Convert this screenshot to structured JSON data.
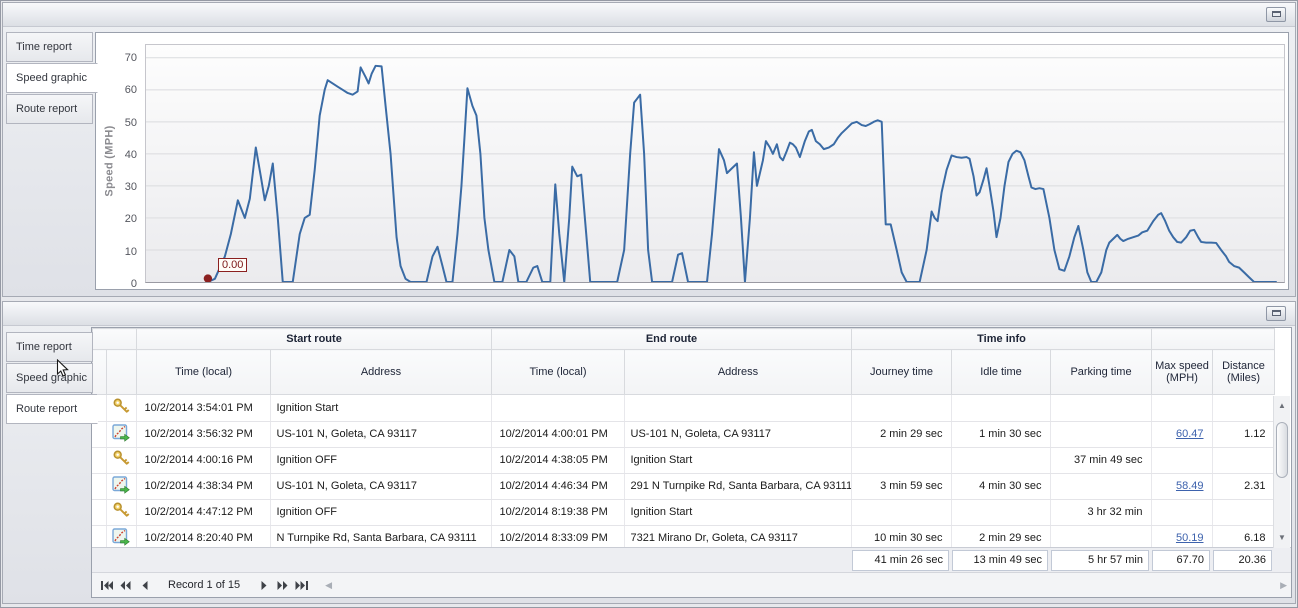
{
  "top_panel": {
    "tabs": [
      {
        "label": "Time report",
        "active": false
      },
      {
        "label": "Speed graphic",
        "active": true
      },
      {
        "label": "Route report",
        "active": false
      }
    ]
  },
  "chart_data": {
    "type": "line",
    "title": "",
    "xlabel": "",
    "ylabel": "Speed (MPH)",
    "ylim": [
      0,
      74
    ],
    "yticks": [
      0,
      10,
      20,
      30,
      40,
      50,
      60,
      70
    ],
    "grid": true,
    "line_color": "#3a6ba5",
    "x_axis_note": "time of trip, axis unlabeled in UI; x = plot pixel offset",
    "start_marker": {
      "value_label": "0.00",
      "color": "#8b2020"
    },
    "points": [
      [
        62,
        0
      ],
      [
        69,
        1
      ],
      [
        79,
        8
      ],
      [
        85,
        15
      ],
      [
        92,
        25.5
      ],
      [
        99,
        20
      ],
      [
        104,
        26
      ],
      [
        110,
        42
      ],
      [
        115,
        33
      ],
      [
        119,
        25.5
      ],
      [
        123,
        30
      ],
      [
        127,
        37
      ],
      [
        132,
        20
      ],
      [
        137,
        0
      ],
      [
        147,
        0
      ],
      [
        154,
        15
      ],
      [
        159,
        20
      ],
      [
        164,
        21
      ],
      [
        169,
        35
      ],
      [
        174,
        52
      ],
      [
        179,
        60
      ],
      [
        182,
        63
      ],
      [
        187,
        62
      ],
      [
        192,
        61
      ],
      [
        197,
        60
      ],
      [
        202,
        59
      ],
      [
        207,
        58.5
      ],
      [
        212,
        59.5
      ],
      [
        215,
        67
      ],
      [
        220,
        64
      ],
      [
        223,
        62
      ],
      [
        226,
        65
      ],
      [
        230,
        67.5
      ],
      [
        236,
        67.3
      ],
      [
        240,
        55
      ],
      [
        245,
        40
      ],
      [
        251,
        14
      ],
      [
        255,
        5
      ],
      [
        260,
        1
      ],
      [
        265,
        0
      ],
      [
        281,
        0
      ],
      [
        287,
        8
      ],
      [
        292,
        11
      ],
      [
        297,
        5
      ],
      [
        301,
        0
      ],
      [
        307,
        0
      ],
      [
        312,
        15
      ],
      [
        316,
        30
      ],
      [
        319,
        45
      ],
      [
        322,
        60.5
      ],
      [
        327,
        55
      ],
      [
        331,
        52
      ],
      [
        335,
        40
      ],
      [
        339,
        20
      ],
      [
        343,
        10
      ],
      [
        349,
        0
      ],
      [
        357,
        0
      ],
      [
        364,
        10
      ],
      [
        369,
        8
      ],
      [
        373,
        0
      ],
      [
        381,
        0
      ],
      [
        388,
        4.5
      ],
      [
        392,
        5
      ],
      [
        397,
        0
      ],
      [
        405,
        0
      ],
      [
        410,
        30.5
      ],
      [
        414,
        15
      ],
      [
        419,
        0
      ],
      [
        424,
        20
      ],
      [
        427,
        36
      ],
      [
        432,
        33
      ],
      [
        436,
        33.5
      ],
      [
        441,
        15
      ],
      [
        445,
        0
      ],
      [
        457,
        0
      ],
      [
        472,
        0
      ],
      [
        479,
        10
      ],
      [
        485,
        40
      ],
      [
        489,
        56
      ],
      [
        495,
        58.5
      ],
      [
        499,
        40
      ],
      [
        503,
        10
      ],
      [
        507,
        0
      ],
      [
        517,
        0
      ],
      [
        527,
        0
      ],
      [
        533,
        8.5
      ],
      [
        537,
        9
      ],
      [
        543,
        0
      ],
      [
        553,
        0
      ],
      [
        562,
        0
      ],
      [
        567,
        15
      ],
      [
        571,
        30
      ],
      [
        574,
        41.5
      ],
      [
        579,
        38
      ],
      [
        582,
        34
      ],
      [
        587,
        35.5
      ],
      [
        592,
        37
      ],
      [
        596,
        20
      ],
      [
        600,
        0
      ],
      [
        605,
        20
      ],
      [
        609,
        40.5
      ],
      [
        612,
        30
      ],
      [
        615,
        34
      ],
      [
        618,
        38
      ],
      [
        621,
        44
      ],
      [
        625,
        42
      ],
      [
        628,
        40
      ],
      [
        632,
        43
      ],
      [
        635,
        39
      ],
      [
        638,
        38
      ],
      [
        642,
        41
      ],
      [
        645,
        43.5
      ],
      [
        648,
        43
      ],
      [
        651,
        42
      ],
      [
        655,
        39
      ],
      [
        660,
        44
      ],
      [
        664,
        47
      ],
      [
        667,
        47.5
      ],
      [
        671,
        44
      ],
      [
        675,
        43
      ],
      [
        679,
        41.5
      ],
      [
        684,
        42
      ],
      [
        689,
        43
      ],
      [
        693,
        45
      ],
      [
        697,
        46.5
      ],
      [
        702,
        48
      ],
      [
        707,
        49.5
      ],
      [
        712,
        50
      ],
      [
        717,
        49
      ],
      [
        721,
        48.7
      ],
      [
        725,
        49.3
      ],
      [
        729,
        50
      ],
      [
        733,
        50.5
      ],
      [
        737,
        50
      ],
      [
        741,
        18
      ],
      [
        746,
        18
      ],
      [
        752,
        10
      ],
      [
        757,
        3
      ],
      [
        762,
        0
      ],
      [
        775,
        0
      ],
      [
        782,
        10
      ],
      [
        787,
        22
      ],
      [
        790,
        20
      ],
      [
        793,
        19
      ],
      [
        797,
        28
      ],
      [
        802,
        35
      ],
      [
        807,
        39.5
      ],
      [
        812,
        39
      ],
      [
        817,
        38.8
      ],
      [
        822,
        39
      ],
      [
        825,
        38.5
      ],
      [
        829,
        33
      ],
      [
        832,
        27
      ],
      [
        835,
        28
      ],
      [
        839,
        32
      ],
      [
        842,
        35.5
      ],
      [
        845,
        30
      ],
      [
        849,
        22
      ],
      [
        852,
        14
      ],
      [
        856,
        20
      ],
      [
        860,
        30
      ],
      [
        864,
        37.5
      ],
      [
        868,
        40
      ],
      [
        872,
        41
      ],
      [
        876,
        40.5
      ],
      [
        880,
        38
      ],
      [
        884,
        33
      ],
      [
        887,
        29.5
      ],
      [
        891,
        29
      ],
      [
        895,
        29.3
      ],
      [
        899,
        29
      ],
      [
        905,
        20
      ],
      [
        910,
        10
      ],
      [
        915,
        4
      ],
      [
        920,
        3.5
      ],
      [
        925,
        8
      ],
      [
        930,
        14
      ],
      [
        934,
        17.5
      ],
      [
        939,
        10
      ],
      [
        943,
        3
      ],
      [
        947,
        0
      ],
      [
        952,
        0
      ],
      [
        957,
        3
      ],
      [
        962,
        10
      ],
      [
        965,
        12.3
      ],
      [
        969,
        13.5
      ],
      [
        973,
        14.7
      ],
      [
        976,
        13.5
      ],
      [
        979,
        12.8
      ],
      [
        984,
        13.5
      ],
      [
        989,
        14
      ],
      [
        994,
        14.5
      ],
      [
        998,
        15.5
      ],
      [
        1003,
        16
      ],
      [
        1009,
        19
      ],
      [
        1014,
        21
      ],
      [
        1017,
        21.5
      ],
      [
        1021,
        19
      ],
      [
        1025,
        16
      ],
      [
        1029,
        14
      ],
      [
        1033,
        12.5
      ],
      [
        1037,
        12.3
      ],
      [
        1042,
        14
      ],
      [
        1046,
        16
      ],
      [
        1050,
        16.3
      ],
      [
        1054,
        14
      ],
      [
        1057,
        12.5
      ],
      [
        1062,
        12.3
      ],
      [
        1067,
        12.3
      ],
      [
        1072,
        12.2
      ],
      [
        1077,
        10
      ],
      [
        1082,
        8
      ],
      [
        1085,
        6.3
      ],
      [
        1090,
        5
      ],
      [
        1095,
        4.5
      ],
      [
        1100,
        3
      ],
      [
        1105,
        1.5
      ],
      [
        1110,
        0
      ],
      [
        1120,
        0
      ],
      [
        1132,
        0
      ]
    ]
  },
  "bottom_panel": {
    "tabs": [
      {
        "label": "Time report",
        "active": false
      },
      {
        "label": "Speed graphic",
        "active": false
      },
      {
        "label": "Route report",
        "active": true
      }
    ],
    "table": {
      "group_headers": [
        {
          "label": "Start route"
        },
        {
          "label": "End route"
        },
        {
          "label": "Time info"
        },
        {
          "label": ""
        }
      ],
      "columns": [
        "Time (local)",
        "Address",
        "Time (local)",
        "Address",
        "Journey time",
        "Idle time",
        "Parking time",
        "Max speed (MPH)",
        "Distance (Miles)"
      ],
      "rows": [
        {
          "icon": "key",
          "start_time": "10/2/2014 3:54:01 PM",
          "start_address": "Ignition Start",
          "end_time": "",
          "end_address": "",
          "journey_time": "",
          "idle_time": "",
          "parking_time": "",
          "max_speed": "",
          "distance": ""
        },
        {
          "icon": "route",
          "start_time": "10/2/2014 3:56:32 PM",
          "start_address": "US-101 N, Goleta, CA 93117",
          "end_time": "10/2/2014 4:00:01 PM",
          "end_address": "US-101 N, Goleta, CA 93117",
          "journey_time": "2 min 29 sec",
          "idle_time": "1 min 30 sec",
          "parking_time": "",
          "max_speed": "60.47",
          "distance": "1.12"
        },
        {
          "icon": "key",
          "start_time": "10/2/2014 4:00:16 PM",
          "start_address": "Ignition OFF",
          "end_time": "10/2/2014 4:38:05 PM",
          "end_address": "Ignition Start",
          "journey_time": "",
          "idle_time": "",
          "parking_time": "37 min 49 sec",
          "max_speed": "",
          "distance": ""
        },
        {
          "icon": "route",
          "start_time": "10/2/2014 4:38:34 PM",
          "start_address": "US-101 N, Goleta, CA 93117",
          "end_time": "10/2/2014 4:46:34 PM",
          "end_address": "291 N Turnpike Rd, Santa Barbara, CA 93111",
          "journey_time": "3 min 59 sec",
          "idle_time": "4 min 30 sec",
          "parking_time": "",
          "max_speed": "58.49",
          "distance": "2.31"
        },
        {
          "icon": "key",
          "start_time": "10/2/2014 4:47:12 PM",
          "start_address": "Ignition OFF",
          "end_time": "10/2/2014 8:19:38 PM",
          "end_address": "Ignition Start",
          "journey_time": "",
          "idle_time": "",
          "parking_time": "3 hr 32 min",
          "max_speed": "",
          "distance": ""
        },
        {
          "icon": "route",
          "start_time": "10/2/2014 8:20:40 PM",
          "start_address": "N Turnpike Rd, Santa Barbara, CA 93111",
          "end_time": "10/2/2014 8:33:09 PM",
          "end_address": "7321 Mirano Dr, Goleta, CA 93117",
          "journey_time": "10 min 30 sec",
          "idle_time": "2 min 29 sec",
          "parking_time": "",
          "max_speed": "50.19",
          "distance": "6.18"
        }
      ],
      "summary": {
        "journey_time": "41 min 26 sec",
        "idle_time": "13 min 49 sec",
        "parking_time": "5 hr 57 min",
        "max_speed": "67.70",
        "distance": "20.36"
      }
    },
    "pager": {
      "text": "Record 1 of 15"
    }
  },
  "colors": {
    "chart_line": "#3a6ba5",
    "marker": "#8b2020",
    "link": "#3d62ad"
  }
}
